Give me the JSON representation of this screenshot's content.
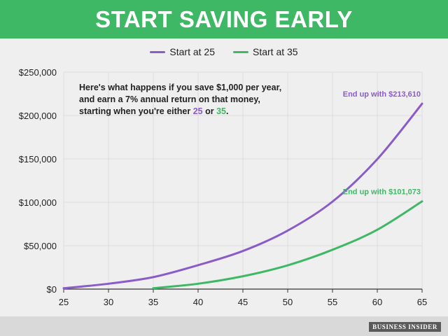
{
  "header": {
    "title": "START SAVING EARLY"
  },
  "legend": [
    {
      "label": "Start at 25",
      "color": "#8a5cc8"
    },
    {
      "label": "Start at 35",
      "color": "#3fb866"
    }
  ],
  "annotation": {
    "line1": "Here's what happens if you save $1,000 per year,",
    "line2": "and earn a 7% annual return on that money,",
    "line3_prefix": "starting when you're either ",
    "age_a": "25",
    "line3_mid": " or ",
    "age_b": "35",
    "line3_suffix": "."
  },
  "brand": {
    "label": "BUSINESS INSIDER"
  },
  "chart_data": {
    "type": "line",
    "title": "START SAVING EARLY",
    "xlabel": "",
    "ylabel": "",
    "xlim": [
      25,
      65
    ],
    "ylim": [
      0,
      250000
    ],
    "xticks": [
      25,
      30,
      35,
      40,
      45,
      50,
      55,
      60,
      65
    ],
    "yticks": [
      0,
      50000,
      100000,
      150000,
      200000,
      250000
    ],
    "ytick_labels": [
      "$0",
      "$50,000",
      "$100,000",
      "$150,000",
      "$200,000",
      "$250,000"
    ],
    "grid": true,
    "legend_position": "top-center",
    "series": [
      {
        "name": "Start at 25",
        "color": "#8a5cc8",
        "x": [
          25,
          30,
          35,
          40,
          45,
          50,
          55,
          60,
          65
        ],
        "y": [
          1000,
          6200,
          13800,
          27600,
          43900,
          67400,
          100800,
          149700,
          213610
        ],
        "end_label": "End up with $213,610"
      },
      {
        "name": "Start at 35",
        "color": "#3fb866",
        "x": [
          35,
          40,
          45,
          50,
          55,
          60,
          65
        ],
        "y": [
          1000,
          6200,
          14800,
          27400,
          45300,
          68400,
          101073
        ],
        "end_label": "End up with $101,073"
      }
    ]
  }
}
